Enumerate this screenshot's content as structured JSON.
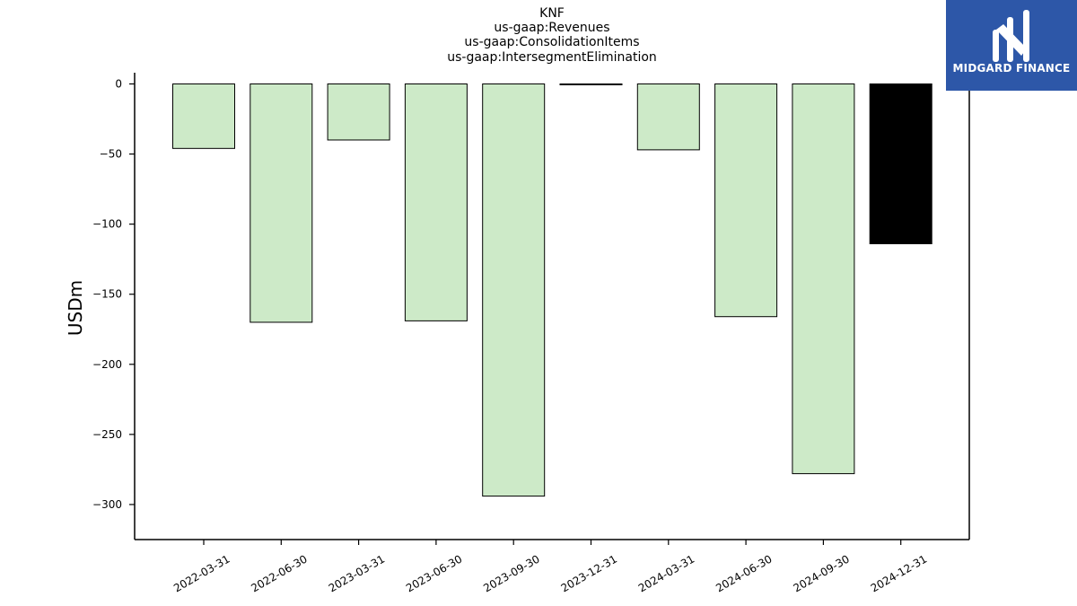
{
  "chart_data": {
    "type": "bar",
    "title_lines": [
      "KNF",
      "us-gaap:Revenues",
      "us-gaap:ConsolidationItems",
      "us-gaap:IntersegmentElimination"
    ],
    "xlabel": "",
    "ylabel": "USDm",
    "categories": [
      "2022-03-31",
      "2022-06-30",
      "2023-03-31",
      "2023-06-30",
      "2023-09-30",
      "2023-12-31",
      "2024-03-31",
      "2024-06-30",
      "2024-09-30",
      "2024-12-31"
    ],
    "values": [
      -46,
      -170,
      -40,
      -169,
      -294,
      -0.5,
      -47,
      -166,
      -278,
      -114
    ],
    "bar_colors": [
      "#cdeac8",
      "#cdeac8",
      "#cdeac8",
      "#cdeac8",
      "#cdeac8",
      "#000000",
      "#cdeac8",
      "#cdeac8",
      "#cdeac8",
      "#000000"
    ],
    "ylim": [
      -325,
      8
    ],
    "yticks": [
      0,
      -50,
      -100,
      -150,
      -200,
      -250,
      -300
    ],
    "grid": false,
    "colors": {
      "bar_default": "#cdeac8",
      "bar_highlight": "#000000",
      "edge": "#000000"
    }
  },
  "logo": {
    "text": "MIDGARD FINANCE",
    "background": "#2d57a8"
  }
}
